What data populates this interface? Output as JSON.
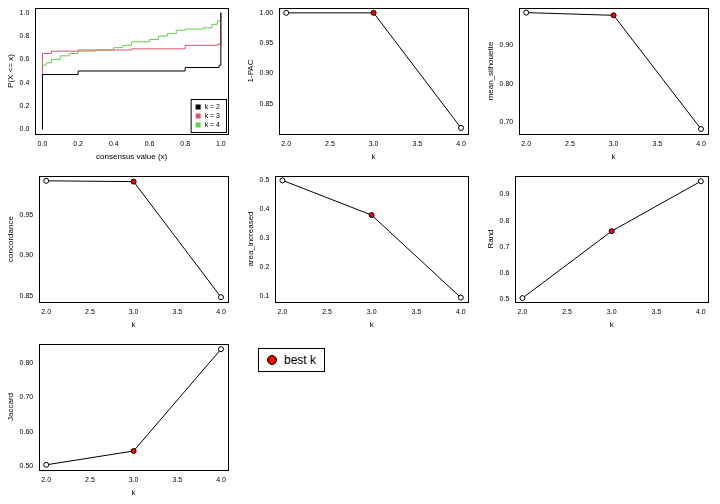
{
  "chart_data": [
    {
      "type": "step",
      "xlabel": "consensus value (x)",
      "ylabel": "P(X <= x)",
      "xlim": [
        -0.04,
        1.04
      ],
      "ylim": [
        -0.04,
        1.04
      ],
      "xticks": [
        {
          "value": 0,
          "label": "0.0"
        },
        {
          "value": 0.2,
          "label": "0.2"
        },
        {
          "value": 0.4,
          "label": "0.4"
        },
        {
          "value": 0.6,
          "label": "0.6"
        },
        {
          "value": 0.8,
          "label": "0.8"
        },
        {
          "value": 1,
          "label": "1.0"
        }
      ],
      "yticks": [
        {
          "value": 0,
          "label": "0.0"
        },
        {
          "value": 0.2,
          "label": "0.2"
        },
        {
          "value": 0.4,
          "label": "0.4"
        },
        {
          "value": 0.6,
          "label": "0.6"
        },
        {
          "value": 0.8,
          "label": "0.8"
        },
        {
          "value": 1,
          "label": "1.0"
        }
      ],
      "legend": "bottom-right",
      "series": [
        {
          "name": "k = 2",
          "color": "#000000",
          "x": [
            0,
            0,
            0.2,
            0.8,
            0.99,
            1
          ],
          "values": [
            0,
            0.47,
            0.5,
            0.53,
            0.55,
            1
          ]
        },
        {
          "name": "k = 3",
          "color": "#DF536B",
          "x": [
            0,
            0,
            0.05,
            0.2,
            0.5,
            0.8,
            0.98,
            1
          ],
          "values": [
            0,
            0.65,
            0.67,
            0.68,
            0.69,
            0.72,
            0.73,
            1
          ]
        },
        {
          "name": "k = 4",
          "color": "#61D04F",
          "x": [
            0,
            0,
            0.02,
            0.05,
            0.1,
            0.15,
            0.2,
            0.3,
            0.4,
            0.45,
            0.5,
            0.6,
            0.65,
            0.7,
            0.75,
            0.8,
            0.9,
            0.95,
            0.98,
            1,
            1
          ],
          "values": [
            0,
            0.55,
            0.57,
            0.6,
            0.63,
            0.65,
            0.67,
            0.68,
            0.7,
            0.72,
            0.75,
            0.77,
            0.8,
            0.82,
            0.85,
            0.86,
            0.87,
            0.9,
            0.93,
            0.97,
            1
          ]
        }
      ]
    },
    {
      "type": "line",
      "xlabel": "k",
      "ylabel": "1-PAC",
      "xlim": [
        1.92,
        4.08
      ],
      "ylim": [
        0.8,
        1.008
      ],
      "xticks": [
        {
          "value": 2,
          "label": "2.0"
        },
        {
          "value": 2.5,
          "label": "2.5"
        },
        {
          "value": 3,
          "label": "3.0"
        },
        {
          "value": 3.5,
          "label": "3.5"
        },
        {
          "value": 4,
          "label": "4.0"
        }
      ],
      "yticks": [
        0.85,
        {
          "value": 0.9,
          "label": "0.90"
        },
        0.95,
        {
          "value": 1,
          "label": "1.00"
        }
      ],
      "series": [
        {
          "color": "#000000",
          "marker": "circle",
          "x": [
            2,
            3,
            4
          ],
          "values": [
            1.0,
            1.0,
            0.81
          ],
          "colors": [
            "#ffffff",
            "#ff0000",
            "#ffffff"
          ]
        }
      ]
    },
    {
      "type": "line",
      "xlabel": "k",
      "ylabel": "mean_silhouette",
      "xlim": [
        1.92,
        4.08
      ],
      "ylim": [
        0.67,
        0.997
      ],
      "xticks": [
        {
          "value": 2,
          "label": "2.0"
        },
        {
          "value": 2.5,
          "label": "2.5"
        },
        {
          "value": 3,
          "label": "3.0"
        },
        {
          "value": 3.5,
          "label": "3.5"
        },
        {
          "value": 4,
          "label": "4.0"
        }
      ],
      "yticks": [
        {
          "value": 0.7,
          "label": "0.70"
        },
        {
          "value": 0.8,
          "label": "0.80"
        },
        {
          "value": 0.9,
          "label": "0.90"
        }
      ],
      "series": [
        {
          "color": "#000000",
          "marker": "circle",
          "x": [
            2,
            3,
            4
          ],
          "values": [
            0.985,
            0.978,
            0.683
          ],
          "colors": [
            "#ffffff",
            "#ff0000",
            "#ffffff"
          ]
        }
      ]
    },
    {
      "type": "line",
      "xlabel": "k",
      "ylabel": "concordance",
      "xlim": [
        1.92,
        4.08
      ],
      "ylim": [
        0.842,
        0.999
      ],
      "xticks": [
        {
          "value": 2,
          "label": "2.0"
        },
        {
          "value": 2.5,
          "label": "2.5"
        },
        {
          "value": 3,
          "label": "3.0"
        },
        {
          "value": 3.5,
          "label": "3.5"
        },
        {
          "value": 4,
          "label": "4.0"
        }
      ],
      "yticks": [
        0.85,
        {
          "value": 0.9,
          "label": "0.90"
        },
        0.95
      ],
      "series": [
        {
          "color": "#000000",
          "marker": "circle",
          "x": [
            2,
            3,
            4
          ],
          "values": [
            0.993,
            0.992,
            0.848
          ],
          "colors": [
            "#ffffff",
            "#ff0000",
            "#ffffff"
          ]
        }
      ]
    },
    {
      "type": "line",
      "xlabel": "k",
      "ylabel": "area_increased",
      "xlim": [
        1.92,
        4.08
      ],
      "ylim": [
        0.08,
        0.515
      ],
      "xticks": [
        {
          "value": 2,
          "label": "2.0"
        },
        {
          "value": 2.5,
          "label": "2.5"
        },
        {
          "value": 3,
          "label": "3.0"
        },
        {
          "value": 3.5,
          "label": "3.5"
        },
        {
          "value": 4,
          "label": "4.0"
        }
      ],
      "yticks": [
        0.1,
        0.2,
        0.3,
        0.4,
        0.5
      ],
      "series": [
        {
          "color": "#000000",
          "marker": "circle",
          "x": [
            2,
            3,
            4
          ],
          "values": [
            0.5,
            0.38,
            0.095
          ],
          "colors": [
            "#ffffff",
            "#ff0000",
            "#ffffff"
          ]
        }
      ]
    },
    {
      "type": "line",
      "xlabel": "k",
      "ylabel": "Rand",
      "xlim": [
        1.92,
        4.08
      ],
      "ylim": [
        0.49,
        0.97
      ],
      "xticks": [
        {
          "value": 2,
          "label": "2.0"
        },
        {
          "value": 2.5,
          "label": "2.5"
        },
        {
          "value": 3,
          "label": "3.0"
        },
        {
          "value": 3.5,
          "label": "3.5"
        },
        {
          "value": 4,
          "label": "4.0"
        }
      ],
      "yticks": [
        0.5,
        0.6,
        0.7,
        0.8,
        0.9
      ],
      "series": [
        {
          "color": "#000000",
          "marker": "circle",
          "x": [
            2,
            3,
            4
          ],
          "values": [
            0.505,
            0.76,
            0.95
          ],
          "colors": [
            "#ffffff",
            "#ff0000",
            "#ffffff"
          ]
        }
      ]
    },
    {
      "type": "line",
      "xlabel": "k",
      "ylabel": "Jaccard",
      "xlim": [
        1.92,
        4.08
      ],
      "ylim": [
        0.49,
        0.855
      ],
      "xticks": [
        {
          "value": 2,
          "label": "2.0"
        },
        {
          "value": 2.5,
          "label": "2.5"
        },
        {
          "value": 3,
          "label": "3.0"
        },
        {
          "value": 3.5,
          "label": "3.5"
        },
        {
          "value": 4,
          "label": "4.0"
        }
      ],
      "yticks": [
        {
          "value": 0.5,
          "label": "0.50"
        },
        {
          "value": 0.6,
          "label": "0.60"
        },
        {
          "value": 0.7,
          "label": "0.70"
        },
        {
          "value": 0.8,
          "label": "0.80"
        }
      ],
      "series": [
        {
          "color": "#000000",
          "marker": "circle",
          "x": [
            2,
            3,
            4
          ],
          "values": [
            0.505,
            0.545,
            0.84
          ],
          "colors": [
            "#ffffff",
            "#ff0000",
            "#ffffff"
          ]
        }
      ]
    }
  ],
  "legend_box": {
    "label": "best k",
    "color": "#ff0000"
  }
}
